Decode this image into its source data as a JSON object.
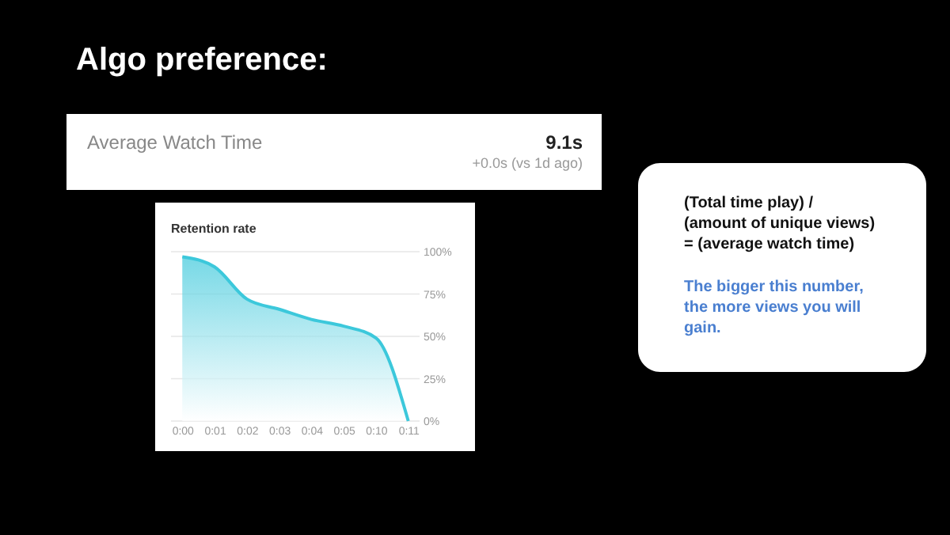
{
  "chart_data": {
    "type": "area",
    "title": "Retention rate",
    "categories": [
      "0:00",
      "0:01",
      "0:02",
      "0:03",
      "0:04",
      "0:05",
      "0:10",
      "0:11"
    ],
    "series": [
      {
        "color": "#3cc8db",
        "values": [
          97,
          91,
          72,
          66,
          60,
          56,
          49,
          0
        ]
      }
    ],
    "ylim": [
      0,
      100
    ],
    "yticks": [
      {
        "value": 0,
        "label": "0%"
      },
      {
        "value": 25,
        "label": "25%"
      },
      {
        "value": 50,
        "label": "50%"
      },
      {
        "value": 75,
        "label": "75%"
      },
      {
        "value": 100,
        "label": "100%"
      }
    ],
    "grid": "y",
    "annotations": [
      "Algo preference:",
      "Average Watch Time",
      "9.1s",
      "+0.0s (vs 1d ago)",
      "(Total time play) / (amount of unique views) = (average watch time)",
      "The bigger this number, the more views you will gain."
    ]
  }
}
